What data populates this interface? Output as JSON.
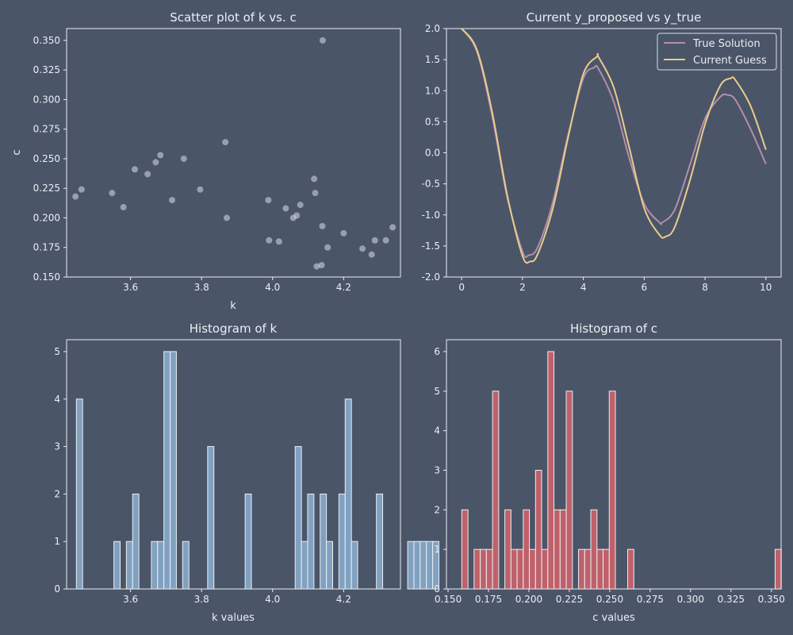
{
  "chart_data": [
    {
      "id": "scatter",
      "type": "scatter",
      "title": "Scatter plot of k vs. c",
      "xlabel": "k",
      "ylabel": "c",
      "xlim": [
        3.42,
        4.36
      ],
      "ylim": [
        0.15,
        0.36
      ],
      "xticks": [
        3.6,
        3.8,
        4.0,
        4.2
      ],
      "xtick_labels": [
        "3.6",
        "3.8",
        "4.0",
        "4.2"
      ],
      "yticks": [
        0.15,
        0.175,
        0.2,
        0.225,
        0.25,
        0.275,
        0.3,
        0.325,
        0.35
      ],
      "ytick_labels": [
        "0.150",
        "0.175",
        "0.200",
        "0.225",
        "0.250",
        "0.275",
        "0.300",
        "0.325",
        "0.350"
      ],
      "grid": false,
      "color": "#d8dee9",
      "points": [
        {
          "x": 3.445,
          "y": 0.218
        },
        {
          "x": 3.462,
          "y": 0.224
        },
        {
          "x": 3.548,
          "y": 0.221
        },
        {
          "x": 3.58,
          "y": 0.209
        },
        {
          "x": 3.612,
          "y": 0.241
        },
        {
          "x": 3.648,
          "y": 0.237
        },
        {
          "x": 3.671,
          "y": 0.247
        },
        {
          "x": 3.684,
          "y": 0.253
        },
        {
          "x": 3.717,
          "y": 0.215
        },
        {
          "x": 3.75,
          "y": 0.25
        },
        {
          "x": 3.796,
          "y": 0.224
        },
        {
          "x": 3.867,
          "y": 0.264
        },
        {
          "x": 3.871,
          "y": 0.2
        },
        {
          "x": 3.988,
          "y": 0.215
        },
        {
          "x": 3.99,
          "y": 0.181
        },
        {
          "x": 4.018,
          "y": 0.18
        },
        {
          "x": 4.037,
          "y": 0.208
        },
        {
          "x": 4.058,
          "y": 0.2
        },
        {
          "x": 4.068,
          "y": 0.202
        },
        {
          "x": 4.078,
          "y": 0.211
        },
        {
          "x": 4.117,
          "y": 0.233
        },
        {
          "x": 4.12,
          "y": 0.221
        },
        {
          "x": 4.124,
          "y": 0.159
        },
        {
          "x": 4.138,
          "y": 0.16
        },
        {
          "x": 4.14,
          "y": 0.193
        },
        {
          "x": 4.141,
          "y": 0.35
        },
        {
          "x": 4.155,
          "y": 0.175
        },
        {
          "x": 4.2,
          "y": 0.187
        },
        {
          "x": 4.253,
          "y": 0.174
        },
        {
          "x": 4.279,
          "y": 0.169
        },
        {
          "x": 4.288,
          "y": 0.181
        },
        {
          "x": 4.319,
          "y": 0.181
        },
        {
          "x": 4.338,
          "y": 0.192
        }
      ]
    },
    {
      "id": "lines",
      "type": "line",
      "title": "Current y_proposed vs y_true",
      "xlabel": "",
      "ylabel": "",
      "xlim": [
        -0.5,
        10.5
      ],
      "ylim": [
        -2.0,
        2.0
      ],
      "xticks": [
        0,
        2,
        4,
        6,
        8,
        10
      ],
      "xtick_labels": [
        "0",
        "2",
        "4",
        "6",
        "8",
        "10"
      ],
      "yticks": [
        -2.0,
        -1.5,
        -1.0,
        -0.5,
        0.0,
        0.5,
        1.0,
        1.5,
        2.0
      ],
      "ytick_labels": [
        "-2.0",
        "-1.5",
        "-1.0",
        "-0.5",
        "0.0",
        "0.5",
        "1.0",
        "1.5",
        "2.0"
      ],
      "grid": false,
      "legend_position": "top-right",
      "series": [
        {
          "name": "True Solution",
          "color": "#b48ead",
          "x": [
            0,
            0.5,
            1,
            1.5,
            2,
            2.2,
            2.5,
            3,
            3.5,
            4,
            4.35,
            4.5,
            5,
            5.5,
            6,
            6.5,
            6.6,
            7,
            7.5,
            8,
            8.5,
            8.75,
            9,
            9.5,
            10
          ],
          "y": [
            2.0,
            1.63,
            0.6,
            -0.72,
            -1.59,
            -1.65,
            -1.52,
            -0.79,
            0.29,
            1.2,
            1.37,
            1.35,
            0.82,
            -0.07,
            -0.82,
            -1.12,
            -1.12,
            -0.92,
            -0.2,
            0.55,
            0.9,
            0.93,
            0.85,
            0.38,
            -0.18
          ]
        },
        {
          "name": "Current Guess",
          "color": "#ebcb8b",
          "x": [
            0,
            0.5,
            1,
            1.5,
            2,
            2.25,
            2.5,
            3,
            3.5,
            4,
            4.45,
            4.5,
            5,
            5.5,
            6,
            6.5,
            6.7,
            7,
            7.5,
            8,
            8.5,
            8.85,
            9,
            9.5,
            10
          ],
          "y": [
            2.0,
            1.66,
            0.66,
            -0.69,
            -1.66,
            -1.75,
            -1.63,
            -0.89,
            0.25,
            1.27,
            1.55,
            1.54,
            1.05,
            0.1,
            -0.89,
            -1.32,
            -1.35,
            -1.2,
            -0.45,
            0.46,
            1.08,
            1.2,
            1.17,
            0.75,
            0.05
          ]
        }
      ]
    },
    {
      "id": "hist-k",
      "type": "bar",
      "title": "Histogram of k",
      "xlabel": "k values",
      "ylabel": "",
      "xlim": [
        3.42,
        4.36
      ],
      "ylim": [
        0,
        5.25
      ],
      "xticks": [
        3.6,
        3.8,
        4.0,
        4.2
      ],
      "xtick_labels": [
        "3.6",
        "3.8",
        "4.0",
        "4.2"
      ],
      "yticks": [
        0,
        1,
        2,
        3,
        4,
        5
      ],
      "ytick_labels": [
        "0",
        "1",
        "2",
        "3",
        "4",
        "5"
      ],
      "grid": false,
      "color": "#81a1c1",
      "bin_start": 3.4475,
      "bin_width": 0.0176,
      "values": [
        4,
        0,
        0,
        0,
        0,
        0,
        1,
        0,
        1,
        2,
        0,
        0,
        1,
        1,
        5,
        5,
        0,
        1,
        0,
        0,
        0,
        3,
        0,
        0,
        0,
        0,
        0,
        2,
        0,
        0,
        0,
        0,
        0,
        0,
        0,
        3,
        1,
        2,
        0,
        2,
        1,
        0,
        2,
        4,
        1,
        0,
        0,
        0,
        2,
        0,
        0,
        0,
        0,
        1,
        1,
        1,
        1,
        1
      ]
    },
    {
      "id": "hist-c",
      "type": "bar",
      "title": "Histogram of c",
      "xlabel": "c values",
      "ylabel": "",
      "xlim": [
        0.149,
        0.356
      ],
      "ylim": [
        0,
        6.3
      ],
      "xticks": [
        0.15,
        0.175,
        0.2,
        0.225,
        0.25,
        0.275,
        0.3,
        0.325,
        0.35
      ],
      "xtick_labels": [
        "0.150",
        "0.175",
        "0.200",
        "0.225",
        "0.250",
        "0.275",
        "0.300",
        "0.325",
        "0.350"
      ],
      "yticks": [
        0,
        1,
        2,
        3,
        4,
        5,
        6
      ],
      "ytick_labels": [
        "0",
        "1",
        "2",
        "3",
        "4",
        "5",
        "6"
      ],
      "grid": false,
      "color": "#bf616a",
      "bin_start": 0.1585,
      "bin_width": 0.0038,
      "values": [
        2,
        0,
        1,
        1,
        1,
        5,
        0,
        2,
        1,
        1,
        2,
        1,
        3,
        1,
        6,
        2,
        2,
        5,
        0,
        1,
        1,
        2,
        1,
        1,
        5,
        0,
        0,
        1,
        0,
        0,
        0,
        0,
        0,
        0,
        0,
        0,
        0,
        0,
        0,
        0,
        0,
        0,
        0,
        0,
        0,
        0,
        0,
        0,
        0,
        0,
        0,
        1
      ]
    }
  ]
}
